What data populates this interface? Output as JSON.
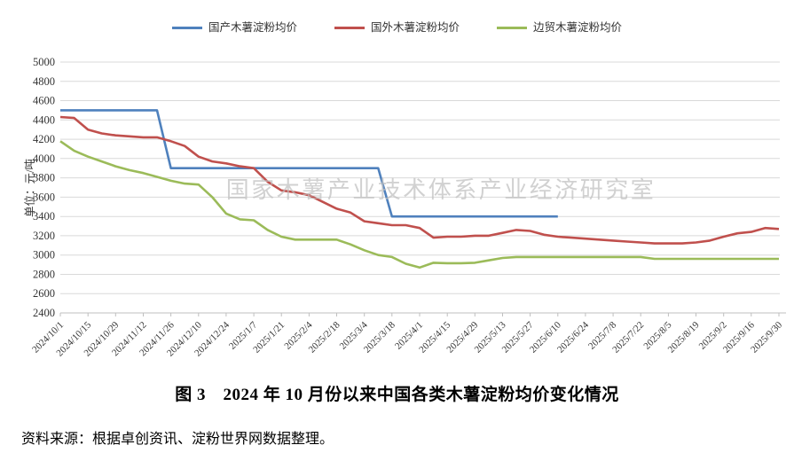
{
  "page": {
    "background": "#ffffff"
  },
  "caption": {
    "title": "图 3　2024 年 10 月份以来中国各类木薯淀粉均价变化情况"
  },
  "source": {
    "text": "资料来源：根据卓创资讯、淀粉世界网数据整理。"
  },
  "watermark": {
    "text": "国家木薯产业技术体系产业经济研究室",
    "color": "#bfbfbf"
  },
  "axis_colors": {
    "gridline": "#d9d9d9",
    "axis_line": "#bfbfbf",
    "tick_text": "#333333"
  },
  "chart_data": {
    "type": "line",
    "title": "",
    "xlabel": "",
    "ylabel": "单位：元/吨",
    "ylim": [
      2400,
      5000
    ],
    "y_ticks": [
      2400,
      2600,
      2800,
      3000,
      3200,
      3400,
      3600,
      3800,
      4000,
      4200,
      4400,
      4600,
      4800,
      5000
    ],
    "grid": true,
    "legend_position": "top-center",
    "x_count": 53,
    "x_tick_every": 2,
    "x_tick_labels": [
      "2024/10/1",
      "2024/10/15",
      "2024/10/29",
      "2024/11/12",
      "2024/11/26",
      "2024/12/10",
      "2024/12/24",
      "2025/1/7",
      "2025/1/21",
      "2025/2/4",
      "2025/2/18",
      "2025/3/4",
      "2025/3/18",
      "2025/4/1",
      "2025/4/15",
      "2025/4/29",
      "2025/5/13",
      "2025/5/27",
      "2025/6/10",
      "2025/6/24",
      "2025/7/8",
      "2025/7/22",
      "2025/8/5",
      "2025/8/19",
      "2025/9/2",
      "2025/9/16",
      "2025/9/30"
    ],
    "series": [
      {
        "name": "国产木薯淀粉均价",
        "color": "#4f81bd",
        "values": [
          4500,
          4500,
          4500,
          4500,
          4500,
          4500,
          4500,
          4500,
          3900,
          3900,
          3900,
          3900,
          3900,
          3900,
          3900,
          3900,
          3900,
          3900,
          3900,
          3900,
          3900,
          3900,
          3900,
          3900,
          3400,
          3400,
          3400,
          3400,
          3400,
          3400,
          3400,
          3400,
          3400,
          3400,
          3400,
          3400,
          3400,
          null,
          null,
          null,
          null,
          null,
          null,
          null,
          null,
          null,
          null,
          null,
          null,
          null,
          null,
          null,
          null
        ]
      },
      {
        "name": "国外木薯淀粉均价",
        "color": "#c0504d",
        "values": [
          4430,
          4420,
          4300,
          4260,
          4240,
          4230,
          4220,
          4220,
          4180,
          4130,
          4020,
          3970,
          3950,
          3920,
          3900,
          3760,
          3670,
          3650,
          3620,
          3550,
          3480,
          3440,
          3350,
          3330,
          3310,
          3310,
          3280,
          3180,
          3190,
          3190,
          3200,
          3200,
          3230,
          3260,
          3250,
          3210,
          3190,
          3180,
          3170,
          3160,
          3150,
          3140,
          3130,
          3120,
          3120,
          3120,
          3130,
          3150,
          3190,
          3225,
          3240,
          3280,
          3270
        ]
      },
      {
        "name": "边贸木薯淀粉均价",
        "color": "#9bbb59",
        "values": [
          4180,
          4080,
          4020,
          3970,
          3920,
          3880,
          3850,
          3810,
          3770,
          3740,
          3730,
          3600,
          3430,
          3370,
          3360,
          3260,
          3190,
          3160,
          3160,
          3160,
          3160,
          3110,
          3050,
          3000,
          2980,
          2910,
          2870,
          2920,
          2915,
          2915,
          2920,
          2945,
          2970,
          2980,
          2980,
          2980,
          2980,
          2980,
          2980,
          2980,
          2980,
          2980,
          2980,
          2960,
          2960,
          2960,
          2960,
          2960,
          2960,
          2960,
          2960,
          2960,
          2960
        ]
      }
    ]
  }
}
